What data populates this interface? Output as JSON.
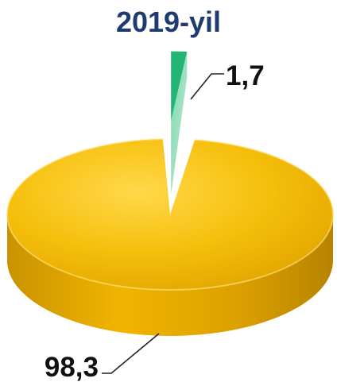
{
  "chart_data": {
    "type": "pie",
    "title": "2019-yil",
    "slices": [
      {
        "value": 98.3,
        "label": "98,3",
        "color": "#F2B705"
      },
      {
        "value": 1.7,
        "label": "1,7",
        "color": "#22B573"
      }
    ],
    "style": "3d-exploded",
    "title_color": "#1F3A6E",
    "label_color": "#111111"
  }
}
